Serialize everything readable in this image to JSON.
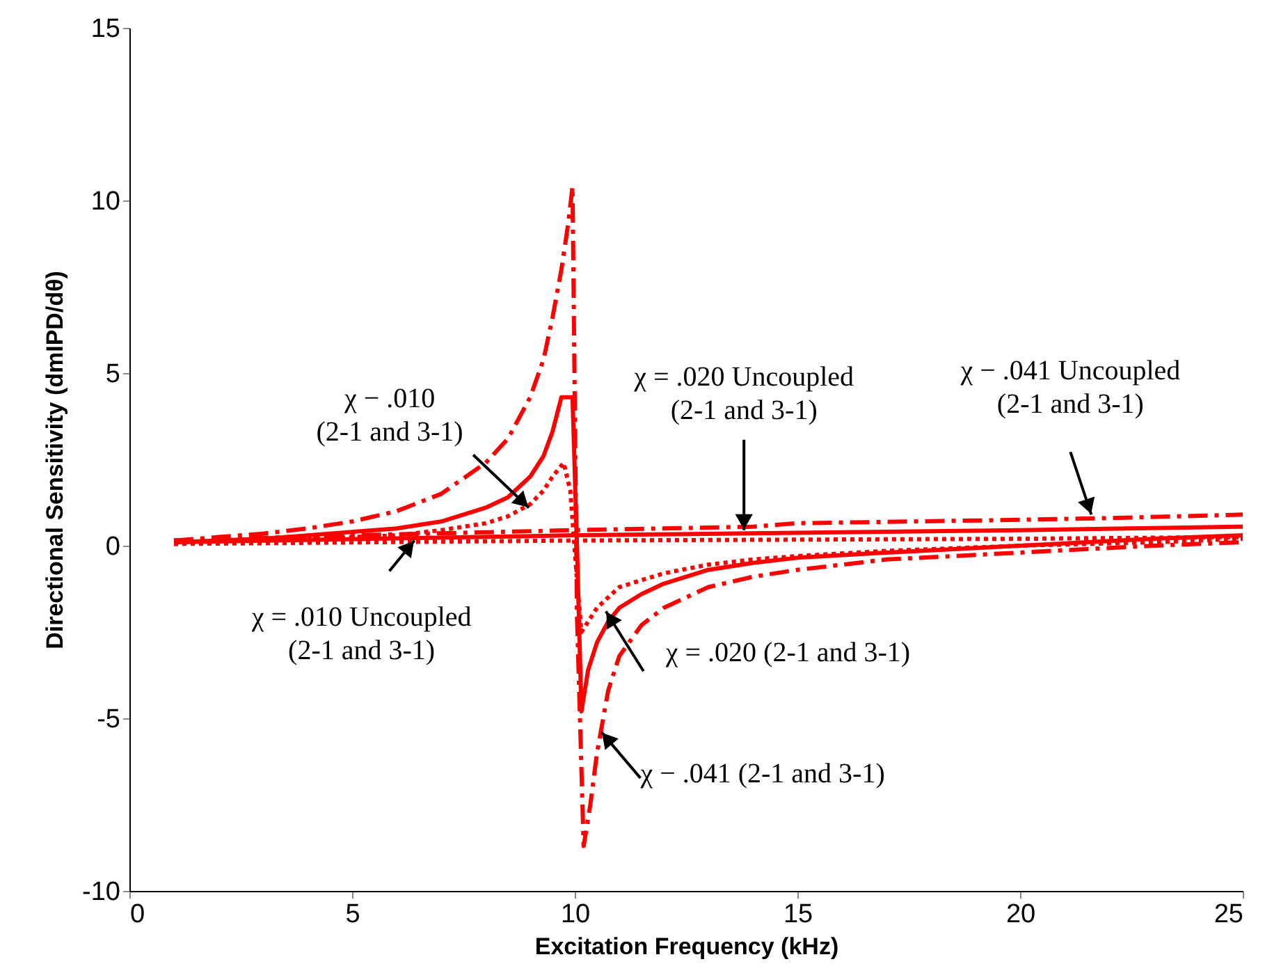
{
  "chart_data": {
    "type": "line",
    "xlabel": "Excitation Frequency (kHz)",
    "ylabel": "Directional Sensitivity (dmIPD/dθ)",
    "xlim": [
      0,
      25
    ],
    "xticks": [
      0,
      5,
      10,
      15,
      20,
      25
    ],
    "ylim": [
      -10,
      15
    ],
    "yticks": [
      -10,
      -5,
      0,
      5,
      10,
      15
    ],
    "grid": false,
    "marker": "none",
    "series": [
      {
        "color": "#ff0000",
        "line_style": "dashed",
        "x": [
          1,
          2,
          3,
          4,
          5,
          6,
          7,
          8,
          8.5,
          9,
          9.3,
          9.5,
          9.7,
          9.85,
          9.95,
          10.05,
          10.2,
          10.35,
          10.5,
          10.75,
          11,
          11.5,
          12,
          13,
          14,
          15,
          17,
          20,
          23,
          25
        ],
        "values": [
          0.15,
          0.25,
          0.35,
          0.5,
          0.7,
          1.0,
          1.5,
          2.4,
          3.1,
          4.3,
          5.4,
          6.6,
          8.0,
          9.3,
          10.4,
          -2,
          -8.7,
          -7.5,
          -6,
          -4.2,
          -3.2,
          -2.3,
          -1.8,
          -1.2,
          -0.9,
          -0.7,
          -0.4,
          -0.2,
          0,
          0.1
        ]
      },
      {
        "color": "#ff0000",
        "line_style": "solid",
        "x": [
          1,
          2,
          3,
          4,
          5,
          6,
          7,
          8,
          8.5,
          9,
          9.3,
          9.5,
          9.7,
          9.95,
          10.05,
          10.15,
          10.3,
          10.5,
          10.75,
          11,
          11.5,
          12,
          13,
          14,
          15,
          17,
          20,
          23,
          25
        ],
        "values": [
          0.1,
          0.15,
          0.2,
          0.3,
          0.4,
          0.5,
          0.7,
          1.1,
          1.4,
          2.0,
          2.6,
          3.3,
          4.3,
          4.3,
          0,
          -4.8,
          -3.6,
          -2.8,
          -2.2,
          -1.8,
          -1.4,
          -1.1,
          -0.7,
          -0.5,
          -0.35,
          -0.2,
          0,
          0.2,
          0.3
        ]
      },
      {
        "color": "#ff0000",
        "line_style": "dotted",
        "x": [
          1,
          2,
          3,
          4,
          5,
          6,
          7,
          8,
          8.5,
          9,
          9.3,
          9.5,
          9.75,
          9.9,
          10.05,
          10.15,
          10.3,
          10.5,
          11,
          11.5,
          12,
          13,
          14,
          15,
          17,
          20,
          23,
          25
        ],
        "values": [
          0.05,
          0.1,
          0.15,
          0.2,
          0.25,
          0.3,
          0.45,
          0.65,
          0.85,
          1.2,
          1.6,
          2.0,
          2.4,
          1.6,
          -1,
          -2.5,
          -2.2,
          -1.8,
          -1.2,
          -1.0,
          -0.8,
          -0.55,
          -0.4,
          -0.3,
          -0.15,
          0,
          0.1,
          0.2
        ]
      },
      {
        "color": "#ff0000",
        "line_style": "dashed",
        "x": [
          1,
          5,
          10,
          14,
          15,
          20,
          22,
          25
        ],
        "values": [
          0.15,
          0.3,
          0.45,
          0.55,
          0.65,
          0.75,
          0.8,
          0.9
        ]
      },
      {
        "color": "#ff0000",
        "line_style": "solid",
        "x": [
          1,
          10,
          20,
          25
        ],
        "values": [
          0.1,
          0.3,
          0.45,
          0.55
        ]
      },
      {
        "color": "#ff0000",
        "line_style": "dotted",
        "x": [
          1,
          10,
          20,
          25
        ],
        "values": [
          0.05,
          0.15,
          0.2,
          0.25
        ]
      }
    ],
    "annotations": [
      {
        "text": "χ − .010\n(2-1 and 3-1)",
        "x": 8.97,
        "y": 1.1
      },
      {
        "text": "χ = .020  Uncoupled\n(2-1 and 3-1)",
        "x": 13.8,
        "y": 0.45
      },
      {
        "text": "χ − .041  Uncoupled\n(2-1 and 3-1)",
        "x": 21.6,
        "y": 0.9
      },
      {
        "text": "χ = .010  Uncoupled\n(2-1 and 3-1)",
        "x": 6.4,
        "y": 0.15
      },
      {
        "text": "χ = .020 (2-1 and 3-1)",
        "x": 10.7,
        "y": -1.9
      },
      {
        "text": "χ − .041 (2-1 and 3-1)",
        "x": 10.6,
        "y": -5.4
      }
    ]
  }
}
